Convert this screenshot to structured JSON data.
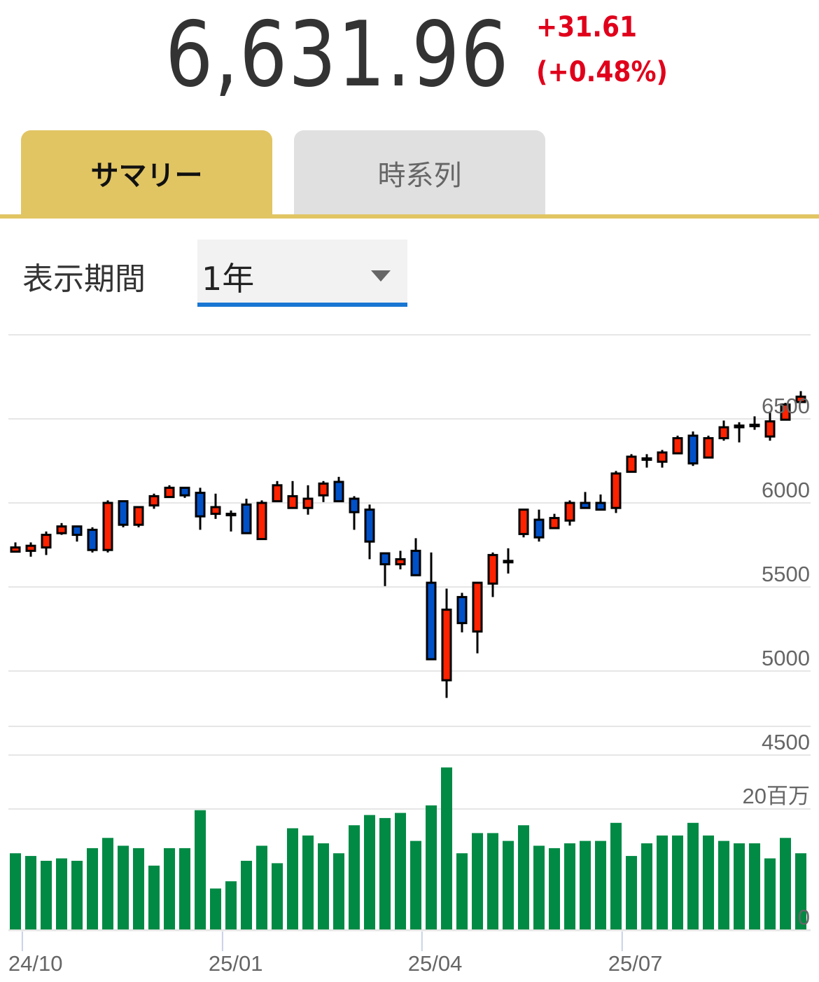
{
  "quote": {
    "price": "6,631.96",
    "change": "+31.61",
    "change_pct": "(+0.48%)",
    "change_color": "#e0001b"
  },
  "tabs": [
    {
      "label": "サマリー",
      "active": true
    },
    {
      "label": "時系列",
      "active": false
    }
  ],
  "period": {
    "label": "表示期間",
    "selected": "1年"
  },
  "colors": {
    "up": "#ff2200",
    "down": "#0050c8",
    "volume": "#008a44",
    "accent": "#e1c563",
    "select_underline": "#1976d2"
  },
  "chart_data": {
    "type": "candlestick",
    "price_axis": {
      "ticks": [
        "4500",
        "5000",
        "5500",
        "6000",
        "6500"
      ],
      "tick_values": [
        4500,
        5000,
        5500,
        6000,
        6500
      ],
      "ylim": [
        4500,
        7000
      ],
      "position": "right"
    },
    "volume_axis": {
      "ticks": [
        "0",
        "20百万"
      ],
      "tick_values": [
        0,
        20
      ],
      "unit": "百万"
    },
    "x_ticks": [
      {
        "label": "24/10",
        "at_index": 0.45
      },
      {
        "label": "25/01",
        "at_index": 13.45
      },
      {
        "label": "25/04",
        "at_index": 26.4
      },
      {
        "label": "25/07",
        "at_index": 39.4
      }
    ],
    "grid": true,
    "candles": [
      {
        "o": 5710,
        "h": 5765,
        "l": 5705,
        "c": 5735
      },
      {
        "o": 5715,
        "h": 5765,
        "l": 5680,
        "c": 5745
      },
      {
        "o": 5735,
        "h": 5830,
        "l": 5690,
        "c": 5810
      },
      {
        "o": 5820,
        "h": 5880,
        "l": 5810,
        "c": 5860
      },
      {
        "o": 5860,
        "h": 5865,
        "l": 5770,
        "c": 5810
      },
      {
        "o": 5840,
        "h": 5855,
        "l": 5705,
        "c": 5720
      },
      {
        "o": 5720,
        "h": 6015,
        "l": 5705,
        "c": 6000
      },
      {
        "o": 6010,
        "h": 6010,
        "l": 5855,
        "c": 5870
      },
      {
        "o": 5870,
        "h": 5975,
        "l": 5855,
        "c": 5975
      },
      {
        "o": 5985,
        "h": 6055,
        "l": 5965,
        "c": 6040
      },
      {
        "o": 6035,
        "h": 6105,
        "l": 6035,
        "c": 6090
      },
      {
        "o": 6090,
        "h": 6090,
        "l": 6030,
        "c": 6045
      },
      {
        "o": 6060,
        "h": 6090,
        "l": 5840,
        "c": 5920
      },
      {
        "o": 5935,
        "h": 6055,
        "l": 5905,
        "c": 5975
      },
      {
        "o": 5930,
        "h": 5955,
        "l": 5830,
        "c": 5935
      },
      {
        "o": 5990,
        "h": 6025,
        "l": 5820,
        "c": 5820
      },
      {
        "o": 5785,
        "h": 6015,
        "l": 5785,
        "c": 6000
      },
      {
        "o": 6010,
        "h": 6130,
        "l": 6010,
        "c": 6105
      },
      {
        "o": 5970,
        "h": 6130,
        "l": 5970,
        "c": 6040
      },
      {
        "o": 5970,
        "h": 6105,
        "l": 5930,
        "c": 6025
      },
      {
        "o": 6045,
        "h": 6130,
        "l": 6005,
        "c": 6115
      },
      {
        "o": 6125,
        "h": 6155,
        "l": 6010,
        "c": 6010
      },
      {
        "o": 6025,
        "h": 6040,
        "l": 5840,
        "c": 5945
      },
      {
        "o": 5960,
        "h": 5990,
        "l": 5665,
        "c": 5770
      },
      {
        "o": 5700,
        "h": 5700,
        "l": 5505,
        "c": 5635
      },
      {
        "o": 5635,
        "h": 5715,
        "l": 5605,
        "c": 5665
      },
      {
        "o": 5715,
        "h": 5790,
        "l": 5570,
        "c": 5570
      },
      {
        "o": 5525,
        "h": 5705,
        "l": 5070,
        "c": 5070
      },
      {
        "o": 4945,
        "h": 5490,
        "l": 4840,
        "c": 5365
      },
      {
        "o": 5440,
        "h": 5465,
        "l": 5230,
        "c": 5285
      },
      {
        "o": 5235,
        "h": 5525,
        "l": 5105,
        "c": 5525
      },
      {
        "o": 5520,
        "h": 5705,
        "l": 5440,
        "c": 5690
      },
      {
        "o": 5650,
        "h": 5730,
        "l": 5580,
        "c": 5655
      },
      {
        "o": 5815,
        "h": 5960,
        "l": 5795,
        "c": 5960
      },
      {
        "o": 5900,
        "h": 5960,
        "l": 5770,
        "c": 5795
      },
      {
        "o": 5850,
        "h": 5935,
        "l": 5850,
        "c": 5910
      },
      {
        "o": 5895,
        "h": 6015,
        "l": 5865,
        "c": 6000
      },
      {
        "o": 6000,
        "h": 6065,
        "l": 5970,
        "c": 5970
      },
      {
        "o": 6000,
        "h": 6050,
        "l": 5960,
        "c": 5960
      },
      {
        "o": 5970,
        "h": 6190,
        "l": 5940,
        "c": 6175
      },
      {
        "o": 6185,
        "h": 6290,
        "l": 6185,
        "c": 6275
      },
      {
        "o": 6260,
        "h": 6290,
        "l": 6210,
        "c": 6265
      },
      {
        "o": 6245,
        "h": 6315,
        "l": 6210,
        "c": 6300
      },
      {
        "o": 6295,
        "h": 6400,
        "l": 6295,
        "c": 6385
      },
      {
        "o": 6400,
        "h": 6425,
        "l": 6220,
        "c": 6235
      },
      {
        "o": 6270,
        "h": 6400,
        "l": 6270,
        "c": 6385
      },
      {
        "o": 6385,
        "h": 6490,
        "l": 6370,
        "c": 6450
      },
      {
        "o": 6450,
        "h": 6480,
        "l": 6360,
        "c": 6460
      },
      {
        "o": 6460,
        "h": 6515,
        "l": 6435,
        "c": 6465
      },
      {
        "o": 6395,
        "h": 6540,
        "l": 6370,
        "c": 6485
      },
      {
        "o": 6495,
        "h": 6595,
        "l": 6490,
        "c": 6585
      },
      {
        "o": 6600,
        "h": 6665,
        "l": 6600,
        "c": 6632
      }
    ],
    "volume": [
      12.65,
      12.2,
      11.4,
      11.8,
      11.4,
      13.5,
      15.2,
      13.9,
      13.5,
      10.6,
      13.5,
      13.5,
      19.8,
      6.8,
      8.0,
      11.4,
      13.9,
      11.0,
      16.8,
      15.6,
      14.3,
      12.65,
      17.3,
      19.0,
      18.5,
      19.35,
      14.7,
      20.6,
      26.9,
      12.65,
      16.0,
      16.0,
      14.7,
      17.3,
      13.9,
      13.5,
      14.3,
      14.7,
      14.7,
      17.7,
      12.2,
      14.3,
      15.6,
      15.6,
      17.7,
      15.6,
      14.7,
      14.3,
      14.3,
      11.8,
      15.2,
      12.65
    ]
  }
}
